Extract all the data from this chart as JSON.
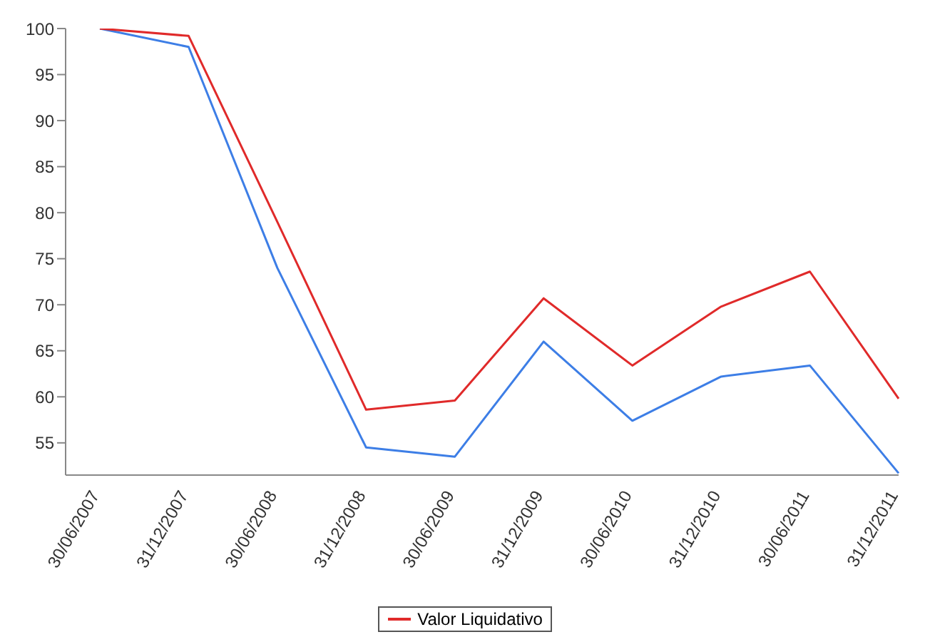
{
  "chart_data": {
    "type": "line",
    "categories": [
      "30/06/2007",
      "31/12/2007",
      "30/06/2008",
      "31/12/2008",
      "30/06/2009",
      "31/12/2009",
      "30/06/2010",
      "31/12/2010",
      "30/06/2011",
      "31/12/2011"
    ],
    "series": [
      {
        "color": "#3d7ee6",
        "values": [
          100,
          98,
          74,
          54.5,
          53.5,
          66,
          57.4,
          62.2,
          63.4,
          51.7
        ]
      },
      {
        "name": "Valor Liquidativo",
        "color": "#e02a2a",
        "values": [
          100,
          99.2,
          79,
          58.6,
          59.6,
          70.7,
          63.4,
          69.8,
          73.6,
          59.8
        ]
      }
    ],
    "ylim": [
      51.5,
      100
    ],
    "yticks": [
      55,
      60,
      65,
      70,
      75,
      80,
      85,
      90,
      95,
      100
    ],
    "grid": false,
    "legend": "bottom",
    "marker": "none",
    "line_style": "solid"
  }
}
